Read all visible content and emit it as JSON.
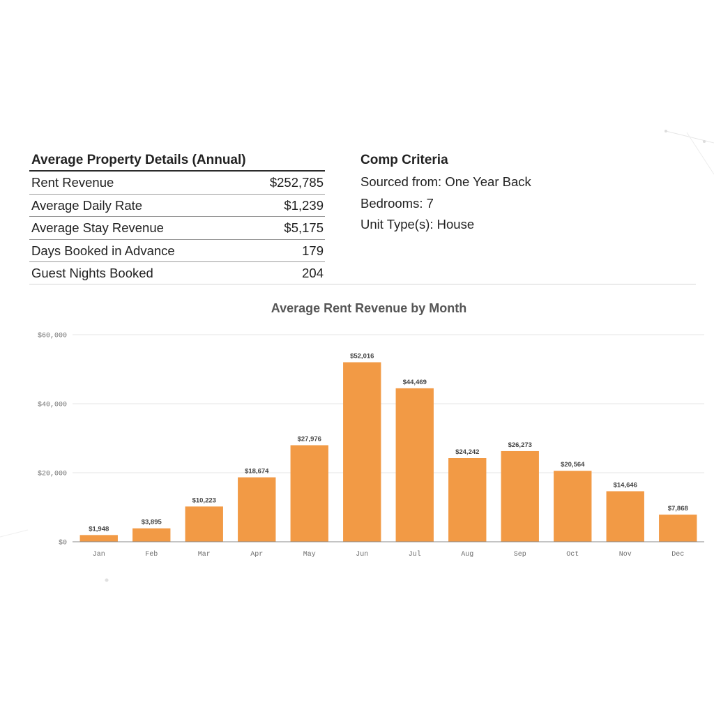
{
  "details": {
    "title": "Average Property Details (Annual)",
    "rows": [
      {
        "label": "Rent Revenue",
        "value": "$252,785"
      },
      {
        "label": "Average Daily Rate",
        "value": "$1,239"
      },
      {
        "label": "Average Stay Revenue",
        "value": "$5,175"
      },
      {
        "label": "Days Booked in Advance",
        "value": "179"
      },
      {
        "label": "Guest Nights Booked",
        "value": "204"
      }
    ]
  },
  "criteria": {
    "title": "Comp Criteria",
    "lines": [
      "Sourced from: One Year Back",
      "Bedrooms: 7",
      "Unit Type(s):  House"
    ]
  },
  "colors": {
    "bar": "#f29a45"
  },
  "chart_data": {
    "type": "bar",
    "title": "Average Rent Revenue by Month",
    "xlabel": "",
    "ylabel": "",
    "categories": [
      "Jan",
      "Feb",
      "Mar",
      "Apr",
      "May",
      "Jun",
      "Jul",
      "Aug",
      "Sep",
      "Oct",
      "Nov",
      "Dec"
    ],
    "values": [
      1948,
      3895,
      10223,
      18674,
      27976,
      52016,
      44469,
      24242,
      26273,
      20564,
      14646,
      7868
    ],
    "data_labels": [
      "$1,948",
      "$3,895",
      "$10,223",
      "$18,674",
      "$27,976",
      "$52,016",
      "$44,469",
      "$24,242",
      "$26,273",
      "$20,564",
      "$14,646",
      "$7,868"
    ],
    "ylim": [
      0,
      60000
    ],
    "yticks": [
      0,
      20000,
      40000,
      60000
    ],
    "ytick_labels": [
      "$0",
      "$20,000",
      "$40,000",
      "$60,000"
    ],
    "grid": true,
    "legend": "none"
  }
}
